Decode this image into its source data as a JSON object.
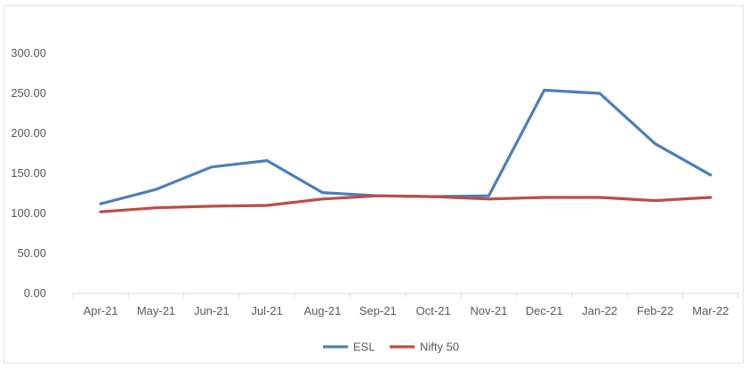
{
  "chart_data": {
    "type": "line",
    "categories": [
      "Apr-21",
      "May-21",
      "Jun-21",
      "Jul-21",
      "Aug-21",
      "Sep-21",
      "Oct-21",
      "Nov-21",
      "Dec-21",
      "Jan-22",
      "Feb-22",
      "Mar-22"
    ],
    "series": [
      {
        "name": "ESL",
        "color": "#4a7ebb",
        "values": [
          112,
          130,
          158,
          166,
          126,
          122,
          121,
          122,
          254,
          250,
          187,
          148
        ]
      },
      {
        "name": "Nifty 50",
        "color": "#be4b48",
        "values": [
          102,
          107,
          109,
          110,
          118,
          122,
          121,
          118,
          120,
          120,
          116,
          120
        ]
      }
    ],
    "yticks": [
      "0.00",
      "50.00",
      "100.00",
      "150.00",
      "200.00",
      "250.00",
      "300.00"
    ],
    "ylim": [
      0,
      300
    ],
    "grid": false,
    "legend": "bottom-center",
    "title": "",
    "xlabel": "",
    "ylabel": ""
  }
}
